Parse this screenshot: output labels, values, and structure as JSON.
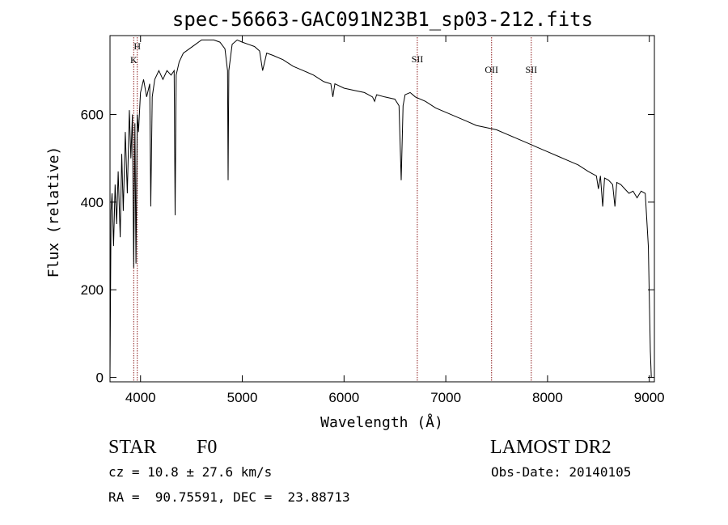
{
  "chart_data": {
    "type": "line",
    "title": "spec-56663-GAC091N23B1_sp03-212.fits",
    "xlabel": "Wavelength (Å)",
    "ylabel": "Flux (relative)",
    "xlim": [
      3700,
      9050
    ],
    "ylim": [
      -10,
      780
    ],
    "x_ticks": [
      4000,
      5000,
      6000,
      7000,
      8000,
      9000
    ],
    "y_ticks": [
      0,
      200,
      400,
      600
    ],
    "x_tick_labels": [
      "4000",
      "5000",
      "6000",
      "7000",
      "8000",
      "9000"
    ],
    "y_tick_labels": [
      "0",
      "200",
      "400",
      "600"
    ],
    "grid": false,
    "line_color": "#000000",
    "marker_color": "#8b1a1a",
    "series": [
      {
        "x": [
          3700,
          3710,
          3720,
          3735,
          3750,
          3765,
          3780,
          3800,
          3815,
          3830,
          3850,
          3870,
          3890,
          3905,
          3920,
          3933,
          3945,
          3955,
          3968,
          3980,
          4000,
          4030,
          4060,
          4090,
          4101,
          4115,
          4140,
          4180,
          4220,
          4260,
          4300,
          4330,
          4340,
          4350,
          4380,
          4420,
          4480,
          4540,
          4600,
          4660,
          4720,
          4780,
          4830,
          4855,
          4861,
          4868,
          4900,
          4950,
          5000,
          5060,
          5120,
          5170,
          5200,
          5240,
          5300,
          5400,
          5500,
          5600,
          5700,
          5800,
          5870,
          5890,
          5910,
          6000,
          6100,
          6200,
          6280,
          6300,
          6320,
          6400,
          6500,
          6540,
          6562,
          6580,
          6600,
          6650,
          6700,
          6800,
          6900,
          7000,
          7100,
          7200,
          7300,
          7400,
          7500,
          7600,
          7700,
          7800,
          7900,
          8000,
          8100,
          8200,
          8300,
          8400,
          8480,
          8500,
          8520,
          8542,
          8560,
          8600,
          8640,
          8662,
          8680,
          8720,
          8760,
          8800,
          8840,
          8880,
          8920,
          8960,
          8990,
          9010,
          9020
        ],
        "y": [
          10,
          380,
          420,
          300,
          440,
          350,
          470,
          320,
          510,
          380,
          560,
          420,
          610,
          500,
          600,
          250,
          580,
          260,
          600,
          560,
          650,
          680,
          640,
          670,
          390,
          640,
          680,
          700,
          680,
          700,
          690,
          700,
          370,
          690,
          720,
          740,
          750,
          760,
          770,
          770,
          770,
          765,
          750,
          700,
          450,
          700,
          760,
          770,
          765,
          760,
          755,
          745,
          700,
          740,
          735,
          725,
          710,
          700,
          690,
          675,
          670,
          640,
          670,
          660,
          655,
          650,
          640,
          630,
          645,
          640,
          635,
          620,
          450,
          620,
          645,
          650,
          640,
          630,
          615,
          605,
          595,
          585,
          575,
          570,
          565,
          555,
          545,
          535,
          525,
          515,
          505,
          495,
          485,
          470,
          460,
          430,
          460,
          390,
          455,
          450,
          440,
          390,
          445,
          440,
          430,
          420,
          425,
          410,
          425,
          420,
          300,
          60,
          0
        ]
      }
    ],
    "line_markers": [
      {
        "label": "H",
        "x": 3968
      },
      {
        "label": "K",
        "x": 3933
      },
      {
        "label": "SII",
        "x": 6720
      },
      {
        "label": "OII",
        "x": 7450
      },
      {
        "label": "SII",
        "x": 7840
      }
    ]
  },
  "info": {
    "class_label": "STAR",
    "subclass_label": "F0",
    "survey_label": "LAMOST DR2",
    "cz_text": "cz = 10.8 ± 27.6 km/s",
    "obs_date_text": "Obs-Date: 20140105",
    "radec_text": "RA =  90.75591, DEC =  23.88713"
  }
}
